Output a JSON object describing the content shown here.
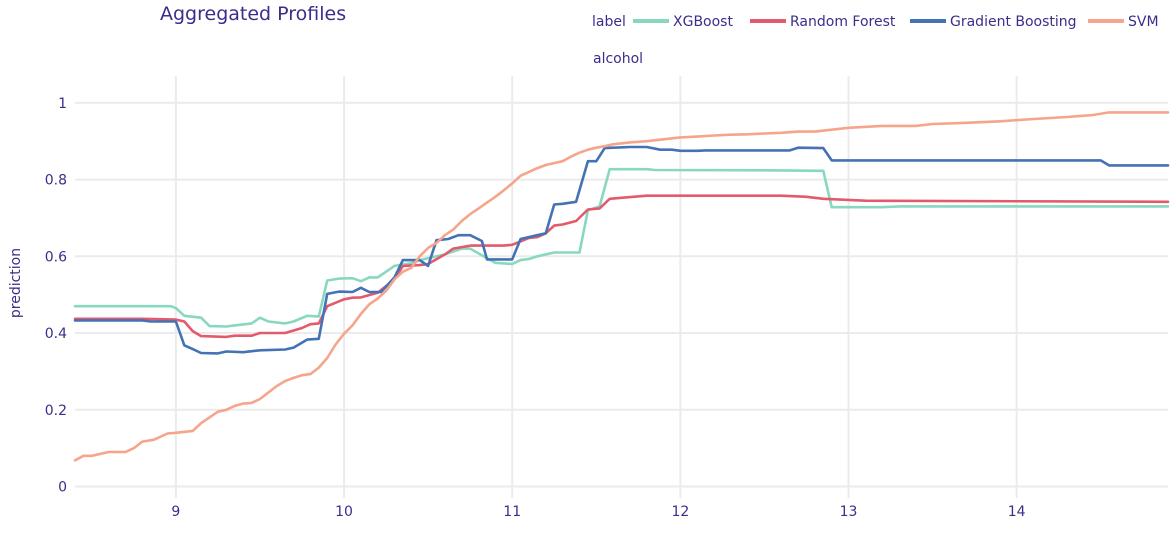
{
  "chart_data": {
    "type": "line",
    "title": "Aggregated Profiles",
    "xlabel": "alcohol",
    "ylabel": "prediction",
    "legend_title": "label",
    "xlim": [
      8.4,
      14.9
    ],
    "ylim": [
      -0.03,
      1.07
    ],
    "x_ticks": [
      9,
      10,
      11,
      12,
      13,
      14
    ],
    "y_ticks": [
      0,
      0.2,
      0.4,
      0.6,
      0.8,
      1
    ],
    "y_tick_labels": [
      "0",
      "0.2",
      "0.4",
      "0.6",
      "0.8",
      "1"
    ],
    "grid": true,
    "legend_position": "top-right",
    "series": [
      {
        "name": "XGBoost",
        "color": "#88d8bf",
        "points": [
          [
            8.4,
            0.47
          ],
          [
            8.97,
            0.47
          ],
          [
            9.0,
            0.465
          ],
          [
            9.05,
            0.445
          ],
          [
            9.15,
            0.44
          ],
          [
            9.2,
            0.418
          ],
          [
            9.3,
            0.417
          ],
          [
            9.35,
            0.42
          ],
          [
            9.45,
            0.425
          ],
          [
            9.5,
            0.44
          ],
          [
            9.55,
            0.43
          ],
          [
            9.65,
            0.425
          ],
          [
            9.7,
            0.43
          ],
          [
            9.78,
            0.445
          ],
          [
            9.85,
            0.443
          ],
          [
            9.9,
            0.537
          ],
          [
            9.97,
            0.542
          ],
          [
            10.05,
            0.543
          ],
          [
            10.1,
            0.535
          ],
          [
            10.15,
            0.545
          ],
          [
            10.2,
            0.545
          ],
          [
            10.3,
            0.575
          ],
          [
            10.4,
            0.582
          ],
          [
            10.45,
            0.59
          ],
          [
            10.55,
            0.6
          ],
          [
            10.6,
            0.605
          ],
          [
            10.7,
            0.62
          ],
          [
            10.75,
            0.62
          ],
          [
            10.85,
            0.595
          ],
          [
            10.9,
            0.583
          ],
          [
            11.0,
            0.58
          ],
          [
            11.05,
            0.59
          ],
          [
            11.1,
            0.593
          ],
          [
            11.15,
            0.6
          ],
          [
            11.25,
            0.61
          ],
          [
            11.4,
            0.61
          ],
          [
            11.45,
            0.72
          ],
          [
            11.52,
            0.73
          ],
          [
            11.58,
            0.827
          ],
          [
            11.8,
            0.827
          ],
          [
            11.85,
            0.825
          ],
          [
            12.6,
            0.824
          ],
          [
            12.85,
            0.823
          ],
          [
            12.9,
            0.728
          ],
          [
            13.2,
            0.728
          ],
          [
            13.3,
            0.73
          ],
          [
            14.9,
            0.73
          ]
        ]
      },
      {
        "name": "Random Forest",
        "color": "#e35a6c",
        "points": [
          [
            8.4,
            0.437
          ],
          [
            8.8,
            0.437
          ],
          [
            9.0,
            0.435
          ],
          [
            9.05,
            0.43
          ],
          [
            9.1,
            0.405
          ],
          [
            9.15,
            0.392
          ],
          [
            9.3,
            0.39
          ],
          [
            9.35,
            0.393
          ],
          [
            9.45,
            0.393
          ],
          [
            9.5,
            0.4
          ],
          [
            9.65,
            0.4
          ],
          [
            9.75,
            0.413
          ],
          [
            9.8,
            0.423
          ],
          [
            9.85,
            0.425
          ],
          [
            9.9,
            0.47
          ],
          [
            10.0,
            0.488
          ],
          [
            10.05,
            0.492
          ],
          [
            10.1,
            0.493
          ],
          [
            10.2,
            0.505
          ],
          [
            10.3,
            0.54
          ],
          [
            10.35,
            0.575
          ],
          [
            10.45,
            0.577
          ],
          [
            10.5,
            0.58
          ],
          [
            10.6,
            0.605
          ],
          [
            10.65,
            0.62
          ],
          [
            10.75,
            0.628
          ],
          [
            10.85,
            0.628
          ],
          [
            10.95,
            0.628
          ],
          [
            11.0,
            0.63
          ],
          [
            11.1,
            0.648
          ],
          [
            11.15,
            0.65
          ],
          [
            11.2,
            0.66
          ],
          [
            11.25,
            0.68
          ],
          [
            11.3,
            0.683
          ],
          [
            11.38,
            0.692
          ],
          [
            11.45,
            0.722
          ],
          [
            11.52,
            0.725
          ],
          [
            11.58,
            0.75
          ],
          [
            11.8,
            0.758
          ],
          [
            12.6,
            0.758
          ],
          [
            12.75,
            0.755
          ],
          [
            12.85,
            0.75
          ],
          [
            13.1,
            0.745
          ],
          [
            14.9,
            0.742
          ]
        ]
      },
      {
        "name": "Gradient Boosting",
        "color": "#4472b4",
        "points": [
          [
            8.4,
            0.433
          ],
          [
            8.8,
            0.433
          ],
          [
            8.85,
            0.43
          ],
          [
            8.95,
            0.43
          ],
          [
            9.0,
            0.43
          ],
          [
            9.05,
            0.368
          ],
          [
            9.1,
            0.358
          ],
          [
            9.15,
            0.348
          ],
          [
            9.25,
            0.347
          ],
          [
            9.3,
            0.352
          ],
          [
            9.4,
            0.35
          ],
          [
            9.5,
            0.355
          ],
          [
            9.65,
            0.357
          ],
          [
            9.7,
            0.362
          ],
          [
            9.78,
            0.383
          ],
          [
            9.85,
            0.385
          ],
          [
            9.9,
            0.502
          ],
          [
            9.97,
            0.508
          ],
          [
            10.05,
            0.507
          ],
          [
            10.1,
            0.518
          ],
          [
            10.15,
            0.507
          ],
          [
            10.22,
            0.507
          ],
          [
            10.3,
            0.545
          ],
          [
            10.35,
            0.59
          ],
          [
            10.45,
            0.59
          ],
          [
            10.5,
            0.575
          ],
          [
            10.55,
            0.642
          ],
          [
            10.62,
            0.645
          ],
          [
            10.68,
            0.655
          ],
          [
            10.75,
            0.655
          ],
          [
            10.82,
            0.64
          ],
          [
            10.85,
            0.592
          ],
          [
            11.0,
            0.592
          ],
          [
            11.05,
            0.645
          ],
          [
            11.15,
            0.655
          ],
          [
            11.2,
            0.66
          ],
          [
            11.25,
            0.735
          ],
          [
            11.3,
            0.737
          ],
          [
            11.38,
            0.742
          ],
          [
            11.45,
            0.848
          ],
          [
            11.5,
            0.848
          ],
          [
            11.55,
            0.882
          ],
          [
            11.7,
            0.885
          ],
          [
            11.8,
            0.885
          ],
          [
            11.88,
            0.878
          ],
          [
            11.95,
            0.878
          ],
          [
            12.0,
            0.875
          ],
          [
            12.1,
            0.875
          ],
          [
            12.15,
            0.876
          ],
          [
            12.5,
            0.876
          ],
          [
            12.65,
            0.876
          ],
          [
            12.7,
            0.883
          ],
          [
            12.85,
            0.882
          ],
          [
            12.9,
            0.85
          ],
          [
            14.5,
            0.85
          ],
          [
            14.55,
            0.837
          ],
          [
            14.9,
            0.837
          ]
        ]
      },
      {
        "name": "SVM",
        "color": "#f6a48b",
        "points": [
          [
            8.4,
            0.068
          ],
          [
            8.45,
            0.08
          ],
          [
            8.5,
            0.08
          ],
          [
            8.6,
            0.09
          ],
          [
            8.7,
            0.09
          ],
          [
            8.75,
            0.1
          ],
          [
            8.8,
            0.117
          ],
          [
            8.87,
            0.122
          ],
          [
            8.95,
            0.138
          ],
          [
            9.0,
            0.14
          ],
          [
            9.1,
            0.145
          ],
          [
            9.15,
            0.165
          ],
          [
            9.2,
            0.18
          ],
          [
            9.25,
            0.195
          ],
          [
            9.3,
            0.2
          ],
          [
            9.35,
            0.21
          ],
          [
            9.4,
            0.216
          ],
          [
            9.45,
            0.218
          ],
          [
            9.5,
            0.228
          ],
          [
            9.55,
            0.245
          ],
          [
            9.6,
            0.262
          ],
          [
            9.65,
            0.275
          ],
          [
            9.7,
            0.283
          ],
          [
            9.75,
            0.29
          ],
          [
            9.8,
            0.293
          ],
          [
            9.85,
            0.31
          ],
          [
            9.9,
            0.335
          ],
          [
            9.95,
            0.37
          ],
          [
            10.0,
            0.398
          ],
          [
            10.05,
            0.42
          ],
          [
            10.1,
            0.45
          ],
          [
            10.15,
            0.475
          ],
          [
            10.2,
            0.49
          ],
          [
            10.25,
            0.51
          ],
          [
            10.3,
            0.54
          ],
          [
            10.35,
            0.56
          ],
          [
            10.4,
            0.57
          ],
          [
            10.45,
            0.6
          ],
          [
            10.5,
            0.622
          ],
          [
            10.55,
            0.635
          ],
          [
            10.6,
            0.655
          ],
          [
            10.65,
            0.67
          ],
          [
            10.7,
            0.692
          ],
          [
            10.75,
            0.71
          ],
          [
            10.8,
            0.725
          ],
          [
            10.85,
            0.74
          ],
          [
            10.9,
            0.755
          ],
          [
            10.95,
            0.772
          ],
          [
            11.0,
            0.79
          ],
          [
            11.05,
            0.81
          ],
          [
            11.1,
            0.82
          ],
          [
            11.15,
            0.83
          ],
          [
            11.2,
            0.838
          ],
          [
            11.25,
            0.843
          ],
          [
            11.3,
            0.848
          ],
          [
            11.35,
            0.86
          ],
          [
            11.4,
            0.87
          ],
          [
            11.45,
            0.878
          ],
          [
            11.5,
            0.883
          ],
          [
            11.55,
            0.887
          ],
          [
            11.6,
            0.892
          ],
          [
            11.7,
            0.897
          ],
          [
            11.8,
            0.9
          ],
          [
            11.9,
            0.905
          ],
          [
            12.0,
            0.91
          ],
          [
            12.1,
            0.912
          ],
          [
            12.2,
            0.915
          ],
          [
            12.3,
            0.917
          ],
          [
            12.4,
            0.918
          ],
          [
            12.5,
            0.92
          ],
          [
            12.6,
            0.922
          ],
          [
            12.7,
            0.925
          ],
          [
            12.8,
            0.925
          ],
          [
            12.9,
            0.93
          ],
          [
            13.0,
            0.935
          ],
          [
            13.2,
            0.94
          ],
          [
            13.4,
            0.94
          ],
          [
            13.5,
            0.945
          ],
          [
            13.7,
            0.948
          ],
          [
            13.9,
            0.952
          ],
          [
            14.1,
            0.958
          ],
          [
            14.3,
            0.963
          ],
          [
            14.45,
            0.968
          ],
          [
            14.55,
            0.975
          ],
          [
            14.9,
            0.975
          ]
        ]
      }
    ]
  }
}
